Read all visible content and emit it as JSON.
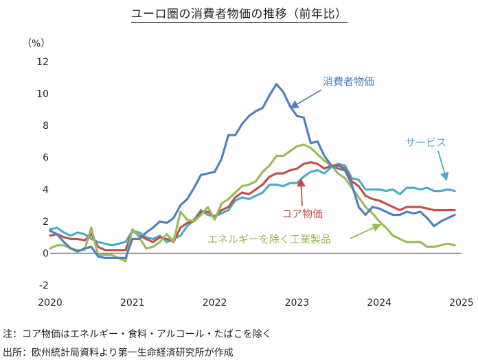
{
  "chart_data": {
    "type": "line",
    "title": "ユーロ圏の消費者物価の推移（前年比）",
    "ylabel": "（%）",
    "ylim": [
      -2,
      12
    ],
    "yticks": [
      -2,
      0,
      2,
      4,
      6,
      8,
      10,
      12
    ],
    "xlim": [
      2020.0,
      2025.0
    ],
    "xticks": [
      "2020",
      "2021",
      "2022",
      "2023",
      "2024",
      "2025"
    ],
    "grid": false,
    "zero_line": true,
    "series": [
      {
        "name": "消費者物価",
        "color": "#4f81bd",
        "x": [
          2020.0,
          2020.083,
          2020.167,
          2020.25,
          2020.333,
          2020.417,
          2020.5,
          2020.583,
          2020.667,
          2020.75,
          2020.833,
          2020.917,
          2021.0,
          2021.083,
          2021.167,
          2021.25,
          2021.333,
          2021.417,
          2021.5,
          2021.583,
          2021.667,
          2021.75,
          2021.833,
          2021.917,
          2022.0,
          2022.083,
          2022.167,
          2022.25,
          2022.333,
          2022.417,
          2022.5,
          2022.583,
          2022.667,
          2022.75,
          2022.833,
          2022.917,
          2023.0,
          2023.083,
          2023.167,
          2023.25,
          2023.333,
          2023.417,
          2023.5,
          2023.583,
          2023.667,
          2023.75,
          2023.833,
          2023.917,
          2024.0,
          2024.083,
          2024.167,
          2024.25,
          2024.333,
          2024.417,
          2024.5,
          2024.583,
          2024.667,
          2024.75,
          2024.833,
          2024.917
        ],
        "values": [
          1.4,
          1.2,
          0.7,
          0.3,
          0.1,
          0.3,
          0.4,
          -0.2,
          -0.3,
          -0.3,
          -0.3,
          -0.3,
          0.9,
          0.9,
          1.3,
          1.6,
          2.0,
          1.9,
          2.2,
          3.0,
          3.4,
          4.1,
          4.9,
          5.0,
          5.1,
          5.9,
          7.4,
          7.4,
          8.1,
          8.6,
          8.9,
          9.1,
          9.9,
          10.6,
          10.1,
          9.2,
          8.6,
          8.5,
          6.9,
          7.0,
          6.1,
          5.5,
          5.3,
          5.2,
          4.3,
          2.9,
          2.4,
          2.9,
          2.8,
          2.6,
          2.4,
          2.4,
          2.6,
          2.5,
          2.6,
          2.2,
          1.7,
          2.0,
          2.2,
          2.4
        ]
      },
      {
        "name": "サービス",
        "color": "#4bacc6",
        "x": [
          2020.0,
          2020.083,
          2020.167,
          2020.25,
          2020.333,
          2020.417,
          2020.5,
          2020.583,
          2020.667,
          2020.75,
          2020.833,
          2020.917,
          2021.0,
          2021.083,
          2021.167,
          2021.25,
          2021.333,
          2021.417,
          2021.5,
          2021.583,
          2021.667,
          2021.75,
          2021.833,
          2021.917,
          2022.0,
          2022.083,
          2022.167,
          2022.25,
          2022.333,
          2022.417,
          2022.5,
          2022.583,
          2022.667,
          2022.75,
          2022.833,
          2022.917,
          2023.0,
          2023.083,
          2023.167,
          2023.25,
          2023.333,
          2023.417,
          2023.5,
          2023.583,
          2023.667,
          2023.75,
          2023.833,
          2023.917,
          2024.0,
          2024.083,
          2024.167,
          2024.25,
          2024.333,
          2024.417,
          2024.5,
          2024.583,
          2024.667,
          2024.75,
          2024.833,
          2024.917
        ],
        "values": [
          1.5,
          1.6,
          1.3,
          1.1,
          1.3,
          1.2,
          0.9,
          0.7,
          0.6,
          0.5,
          0.6,
          0.7,
          1.4,
          1.3,
          1.0,
          0.9,
          1.1,
          0.7,
          0.9,
          1.1,
          1.7,
          2.1,
          2.7,
          2.4,
          2.3,
          2.5,
          2.7,
          3.3,
          3.5,
          3.4,
          3.6,
          3.8,
          4.3,
          4.3,
          4.2,
          4.4,
          4.4,
          4.8,
          5.1,
          5.2,
          5.0,
          5.4,
          5.6,
          5.5,
          4.7,
          4.6,
          4.0,
          4.0,
          4.0,
          3.9,
          4.0,
          3.7,
          4.1,
          4.1,
          4.0,
          4.1,
          3.9,
          3.9,
          4.0,
          3.9
        ]
      },
      {
        "name": "コア物価",
        "color": "#c0504d",
        "x": [
          2020.0,
          2020.083,
          2020.167,
          2020.25,
          2020.333,
          2020.417,
          2020.5,
          2020.583,
          2020.667,
          2020.75,
          2020.833,
          2020.917,
          2021.0,
          2021.083,
          2021.167,
          2021.25,
          2021.333,
          2021.417,
          2021.5,
          2021.583,
          2021.667,
          2021.75,
          2021.833,
          2021.917,
          2022.0,
          2022.083,
          2022.167,
          2022.25,
          2022.333,
          2022.417,
          2022.5,
          2022.583,
          2022.667,
          2022.75,
          2022.833,
          2022.917,
          2023.0,
          2023.083,
          2023.167,
          2023.25,
          2023.333,
          2023.417,
          2023.5,
          2023.583,
          2023.667,
          2023.75,
          2023.833,
          2023.917,
          2024.0,
          2024.083,
          2024.167,
          2024.25,
          2024.333,
          2024.417,
          2024.5,
          2024.583,
          2024.667,
          2024.75,
          2024.833,
          2024.917
        ],
        "values": [
          1.1,
          1.2,
          1.0,
          0.9,
          0.9,
          0.8,
          1.2,
          0.4,
          0.2,
          0.2,
          0.2,
          0.2,
          1.4,
          1.1,
          0.9,
          0.7,
          1.0,
          0.9,
          0.7,
          1.6,
          1.9,
          2.0,
          2.6,
          2.6,
          2.3,
          2.7,
          2.9,
          3.5,
          3.8,
          3.7,
          4.0,
          4.3,
          4.8,
          5.0,
          5.0,
          5.2,
          5.3,
          5.6,
          5.7,
          5.6,
          5.3,
          5.5,
          5.5,
          5.3,
          4.5,
          4.2,
          3.6,
          3.4,
          3.3,
          3.1,
          2.9,
          2.7,
          2.9,
          2.9,
          2.9,
          2.8,
          2.7,
          2.7,
          2.7,
          2.7
        ]
      },
      {
        "name": "エネルギーを除く工業製品",
        "color": "#9bbb59",
        "x": [
          2020.0,
          2020.083,
          2020.167,
          2020.25,
          2020.333,
          2020.417,
          2020.5,
          2020.583,
          2020.667,
          2020.75,
          2020.833,
          2020.917,
          2021.0,
          2021.083,
          2021.167,
          2021.25,
          2021.333,
          2021.417,
          2021.5,
          2021.583,
          2021.667,
          2021.75,
          2021.833,
          2021.917,
          2022.0,
          2022.083,
          2022.167,
          2022.25,
          2022.333,
          2022.417,
          2022.5,
          2022.583,
          2022.667,
          2022.75,
          2022.833,
          2022.917,
          2023.0,
          2023.083,
          2023.167,
          2023.25,
          2023.333,
          2023.417,
          2023.5,
          2023.583,
          2023.667,
          2023.75,
          2023.833,
          2023.917,
          2024.0,
          2024.083,
          2024.167,
          2024.25,
          2024.333,
          2024.417,
          2024.5,
          2024.583,
          2024.667,
          2024.75,
          2024.833,
          2024.917
        ],
        "values": [
          0.3,
          0.5,
          0.5,
          0.3,
          0.2,
          0.2,
          1.6,
          -0.1,
          -0.1,
          -0.1,
          -0.3,
          -0.5,
          1.5,
          1.0,
          0.3,
          0.4,
          0.7,
          1.2,
          0.7,
          2.6,
          2.1,
          2.0,
          2.4,
          2.9,
          2.1,
          3.1,
          3.4,
          3.8,
          4.2,
          4.3,
          4.5,
          5.1,
          5.5,
          6.1,
          6.1,
          6.4,
          6.7,
          6.8,
          6.6,
          6.2,
          5.8,
          5.5,
          5.0,
          4.7,
          4.1,
          3.5,
          2.9,
          2.5,
          2.0,
          1.6,
          1.1,
          0.9,
          0.7,
          0.7,
          0.7,
          0.4,
          0.4,
          0.5,
          0.6,
          0.5
        ]
      }
    ],
    "annotations": [
      {
        "label": "消費者物価",
        "series": 0,
        "color": "#4f81bd"
      },
      {
        "label": "サービス",
        "series": 1,
        "color": "#4bacc6"
      },
      {
        "label": "コア物価",
        "series": 2,
        "color": "#c0504d"
      },
      {
        "label": "エネルギーを除く工業製品",
        "series": 3,
        "color": "#9bbb59"
      }
    ]
  },
  "footnotes": {
    "note": "注：コア物価はエネルギー・食料・アルコール・たばこを除く",
    "source": "出所：欧州統計局資料より第一生命経済研究所が作成"
  }
}
